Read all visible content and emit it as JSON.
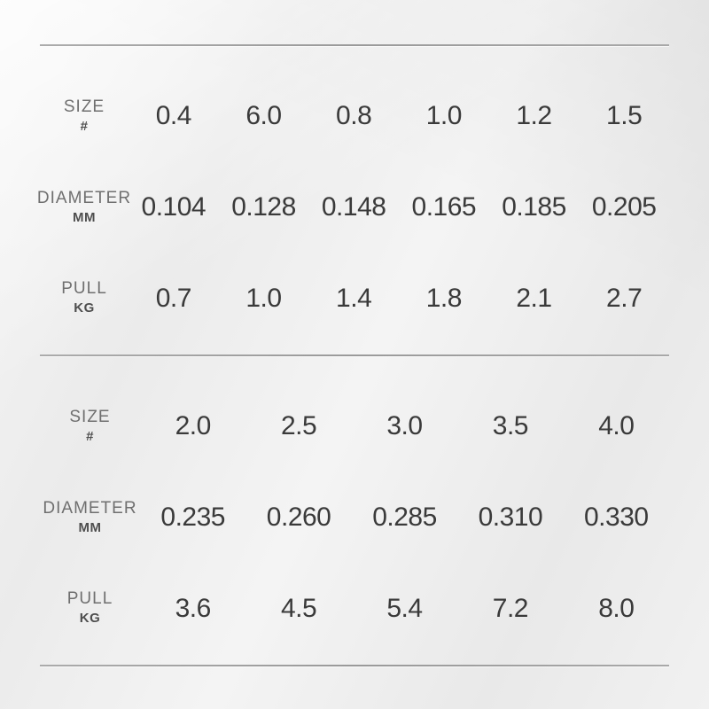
{
  "colors": {
    "background_light": "#f4f4f4",
    "background_dark": "#e9e9e9",
    "divider": "#9e9e9e",
    "label_text": "#6f6f6f",
    "unit_text": "#4e4e4e",
    "value_text": "#3a3a3a"
  },
  "sections": [
    {
      "rows": [
        {
          "label": "SIZE",
          "unit": "#",
          "values": [
            "0.4",
            "6.0",
            "0.8",
            "1.0",
            "1.2",
            "1.5"
          ]
        },
        {
          "label": "DIAMETER",
          "unit": "MM",
          "values": [
            "0.104",
            "0.128",
            "0.148",
            "0.165",
            "0.185",
            "0.205"
          ]
        },
        {
          "label": "PULL",
          "unit": "KG",
          "values": [
            "0.7",
            "1.0",
            "1.4",
            "1.8",
            "2.1",
            "2.7"
          ]
        }
      ]
    },
    {
      "rows": [
        {
          "label": "SIZE",
          "unit": "#",
          "values": [
            "2.0",
            "2.5",
            "3.0",
            "3.5",
            "4.0"
          ]
        },
        {
          "label": "DIAMETER",
          "unit": "MM",
          "values": [
            "0.235",
            "0.260",
            "0.285",
            "0.310",
            "0.330"
          ]
        },
        {
          "label": "PULL",
          "unit": "KG",
          "values": [
            "3.6",
            "4.5",
            "5.4",
            "7.2",
            "8.0"
          ]
        }
      ]
    }
  ],
  "chart_data": [
    {
      "type": "table",
      "title": "Line specification table, section 1",
      "row_headers": [
        "SIZE (#)",
        "DIAMETER (MM)",
        "PULL (KG)"
      ],
      "rows": [
        [
          "0.4",
          "6.0",
          "0.8",
          "1.0",
          "1.2",
          "1.5"
        ],
        [
          "0.104",
          "0.128",
          "0.148",
          "0.165",
          "0.185",
          "0.205"
        ],
        [
          "0.7",
          "1.0",
          "1.4",
          "1.8",
          "2.1",
          "2.7"
        ]
      ]
    },
    {
      "type": "table",
      "title": "Line specification table, section 2",
      "row_headers": [
        "SIZE (#)",
        "DIAMETER (MM)",
        "PULL (KG)"
      ],
      "rows": [
        [
          "2.0",
          "2.5",
          "3.0",
          "3.5",
          "4.0"
        ],
        [
          "0.235",
          "0.260",
          "0.285",
          "0.310",
          "0.330"
        ],
        [
          "3.6",
          "4.5",
          "5.4",
          "7.2",
          "8.0"
        ]
      ]
    }
  ]
}
